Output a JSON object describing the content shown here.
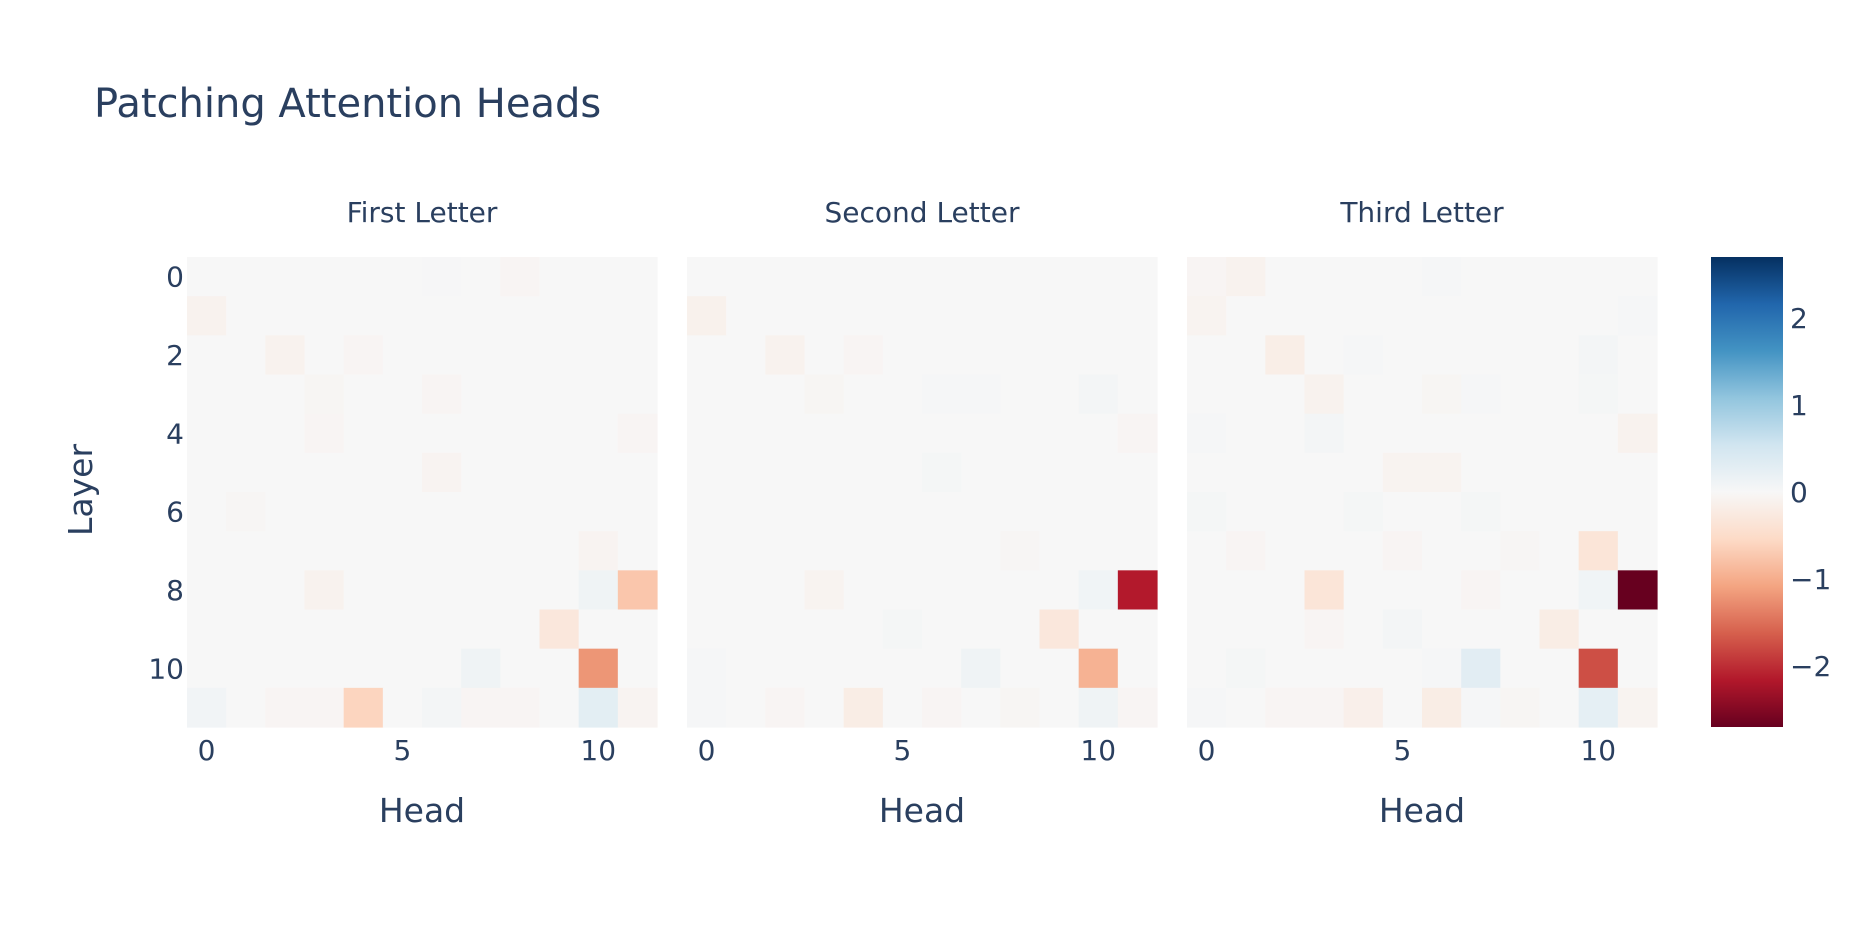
{
  "title": "Patching Attention Heads",
  "chart_data": {
    "type": "heatmap",
    "title": "Patching Attention Heads",
    "colorscale": "RdBu",
    "zrange": [
      -2.7,
      2.7
    ],
    "colorbar": {
      "ticks": [
        2,
        1,
        0,
        -1,
        -2
      ],
      "tick_labels": [
        "2",
        "1",
        "0",
        "−1",
        "−2"
      ]
    },
    "ylabel": "Layer",
    "xlabel": "Head",
    "x_tick_values": [
      0,
      5,
      10
    ],
    "x_tick_labels": [
      "0",
      "5",
      "10"
    ],
    "y_tick_values": [
      0,
      2,
      4,
      6,
      8,
      10
    ],
    "y_tick_labels": [
      "0",
      "2",
      "4",
      "6",
      "8",
      "10"
    ],
    "n_layers": 12,
    "n_heads": 12,
    "panels": [
      {
        "title": "First Letter",
        "z": [
          [
            0,
            0,
            0,
            0,
            0,
            0,
            0.02,
            0,
            -0.05,
            0,
            0,
            0
          ],
          [
            -0.1,
            0,
            0,
            0,
            0,
            0,
            0,
            0,
            0,
            0,
            0,
            0
          ],
          [
            0,
            0,
            -0.1,
            0,
            -0.05,
            0,
            0,
            0,
            0,
            0,
            0,
            0
          ],
          [
            0,
            0,
            0,
            -0.04,
            0,
            0,
            -0.05,
            0,
            0,
            0,
            0,
            0
          ],
          [
            0,
            0,
            0,
            -0.05,
            0,
            0,
            0,
            0,
            0,
            0,
            0,
            -0.05
          ],
          [
            0,
            0,
            0,
            0,
            0,
            0,
            -0.07,
            0,
            0,
            0,
            0,
            0
          ],
          [
            0,
            -0.03,
            0,
            0,
            0,
            0,
            0,
            0,
            0,
            0,
            0,
            0
          ],
          [
            0,
            0,
            0,
            0,
            0,
            0,
            0,
            0,
            0,
            0,
            -0.07,
            0
          ],
          [
            0,
            0,
            0,
            -0.1,
            0,
            0,
            0,
            0,
            0,
            0,
            0.12,
            -0.75
          ],
          [
            0,
            0,
            0,
            0,
            0,
            0,
            0,
            0,
            0,
            -0.3,
            0,
            0
          ],
          [
            0,
            0,
            0,
            0,
            0,
            0,
            0,
            0.12,
            0,
            0,
            -1.2,
            0
          ],
          [
            0.08,
            0,
            -0.05,
            -0.05,
            -0.6,
            0,
            0.05,
            -0.05,
            -0.05,
            0,
            0.28,
            -0.07
          ]
        ]
      },
      {
        "title": "Second Letter",
        "z": [
          [
            0,
            0,
            0,
            0,
            0,
            0,
            0,
            0,
            0,
            0,
            0,
            0
          ],
          [
            -0.12,
            0,
            0,
            0,
            0,
            0,
            0,
            0,
            0,
            0,
            0,
            0
          ],
          [
            0,
            0,
            -0.1,
            0,
            -0.05,
            0,
            0,
            0,
            0,
            0,
            0,
            0
          ],
          [
            0,
            0,
            0,
            -0.04,
            0,
            0,
            0.03,
            0.03,
            0,
            0,
            0.05,
            0
          ],
          [
            0,
            0,
            0,
            0,
            0,
            0,
            0,
            0,
            0,
            0,
            0,
            -0.05
          ],
          [
            0,
            0,
            0,
            0,
            0,
            0,
            0.04,
            0,
            0,
            0,
            0,
            0
          ],
          [
            0,
            0,
            0,
            0,
            0,
            0,
            0,
            0,
            0,
            0,
            0,
            0
          ],
          [
            0,
            0,
            0,
            0,
            0,
            0,
            0,
            0,
            -0.03,
            0,
            0,
            0
          ],
          [
            0,
            0,
            0,
            -0.08,
            0,
            0,
            0,
            0,
            0,
            0,
            0.1,
            -2.15
          ],
          [
            0,
            0,
            0,
            0,
            0,
            0.04,
            0,
            0,
            0,
            -0.3,
            0,
            0
          ],
          [
            0.03,
            0,
            0,
            0,
            0,
            0,
            0,
            0.12,
            0,
            0,
            -0.95,
            0
          ],
          [
            0.03,
            0,
            -0.05,
            0,
            -0.2,
            0,
            -0.05,
            0,
            -0.04,
            0,
            0.12,
            -0.05
          ]
        ]
      },
      {
        "title": "Third Letter",
        "z": [
          [
            -0.05,
            -0.1,
            0,
            0,
            0,
            0,
            0.03,
            0,
            0,
            0,
            0,
            0
          ],
          [
            -0.08,
            0,
            0,
            0,
            0,
            0,
            0,
            0,
            0,
            0,
            0,
            0.03
          ],
          [
            0,
            0,
            -0.18,
            0,
            0.03,
            0,
            0,
            0,
            0,
            0,
            0.05,
            0
          ],
          [
            0,
            0,
            0,
            -0.1,
            0,
            0,
            -0.04,
            0.03,
            0,
            0,
            0.04,
            0
          ],
          [
            0.03,
            0,
            0,
            0.05,
            0,
            0,
            0,
            0,
            0,
            0,
            0,
            -0.1
          ],
          [
            0,
            0,
            0,
            0,
            0,
            -0.08,
            -0.08,
            0,
            0,
            0,
            0,
            0
          ],
          [
            0.04,
            0,
            0,
            0,
            0.04,
            0,
            0,
            0.04,
            0,
            0,
            0,
            0
          ],
          [
            0,
            -0.05,
            0,
            0,
            0,
            -0.05,
            0,
            0,
            -0.03,
            0,
            -0.35,
            0
          ],
          [
            0,
            0,
            0,
            -0.35,
            0,
            0,
            0,
            -0.05,
            0,
            0,
            0.1,
            -2.7
          ],
          [
            0,
            0,
            0,
            -0.05,
            0,
            0.05,
            0,
            0,
            0,
            -0.2,
            0,
            0
          ],
          [
            0,
            0.04,
            0,
            0,
            0,
            0,
            0.03,
            0.3,
            0,
            0,
            -1.75,
            0
          ],
          [
            0.03,
            0,
            -0.05,
            -0.05,
            -0.15,
            0,
            -0.2,
            0.03,
            -0.04,
            0,
            0.25,
            -0.08
          ]
        ]
      }
    ]
  }
}
